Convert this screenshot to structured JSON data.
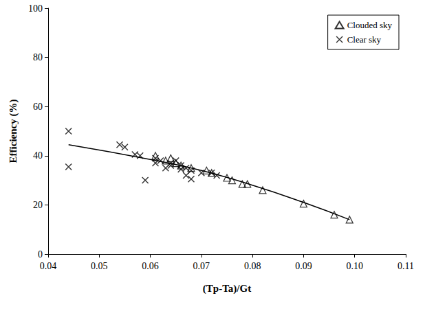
{
  "chart_data": {
    "type": "scatter",
    "x_label": "(Tp-Ta)/Gt",
    "y_label": "Efficiency (%)",
    "xlim": [
      0.04,
      0.11
    ],
    "xticks": [
      0.04,
      0.05,
      0.06,
      0.07,
      0.08,
      0.09,
      {
        "value": 0.1,
        "label": "0.10"
      },
      0.11
    ],
    "ylim": [
      0,
      100
    ],
    "yticks": [
      0,
      20,
      40,
      60,
      80,
      100
    ],
    "grid": false,
    "legend": "upper right",
    "series": [
      {
        "name": "Clouded sky",
        "marker": "triangle",
        "color": "#000000",
        "x": [
          0.061,
          0.063,
          0.064,
          0.065,
          0.066,
          0.068,
          0.071,
          0.072,
          0.075,
          0.076,
          0.078,
          0.079,
          0.082,
          0.09,
          0.096,
          0.099
        ],
        "values": [
          40,
          38,
          39,
          37,
          36,
          35,
          34,
          33,
          31,
          30,
          28.5,
          28.5,
          26,
          20.5,
          16,
          14
        ]
      },
      {
        "name": "Clear sky",
        "marker": "x",
        "color": "#000000",
        "x": [
          0.044,
          0.044,
          0.054,
          0.055,
          0.057,
          0.058,
          0.059,
          0.061,
          0.061,
          0.062,
          0.063,
          0.064,
          0.064,
          0.065,
          0.066,
          0.066,
          0.067,
          0.067,
          0.068,
          0.068,
          0.07,
          0.072,
          0.073
        ],
        "values": [
          50,
          35.5,
          44.5,
          43.5,
          40.5,
          40,
          30,
          39,
          37,
          38,
          35,
          36,
          37,
          38,
          34.5,
          36,
          35,
          32,
          34,
          30.5,
          33,
          33,
          32
        ]
      },
      {
        "type": "line",
        "line_style": "solid",
        "color": "#000000",
        "x": [
          0.044,
          0.06,
          0.07,
          0.08,
          0.09,
          0.099
        ],
        "values": [
          44.5,
          38.5,
          34,
          28,
          21,
          14
        ]
      }
    ]
  }
}
